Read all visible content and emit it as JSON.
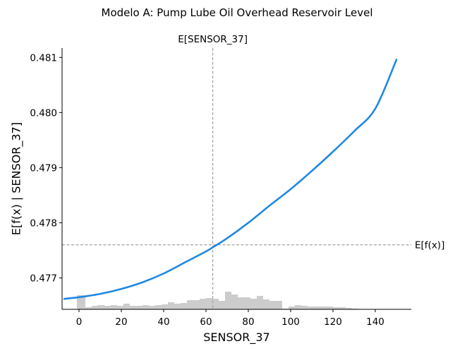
{
  "chart_data": {
    "type": "line",
    "title": "Modelo A: Pump Lube Oil Overhead Reservoir Level",
    "xlabel": "SENSOR_37",
    "ylabel": "E[f(x) | SENSOR_37]",
    "xlim": [
      -8,
      157
    ],
    "ylim": [
      0.47643,
      0.48117
    ],
    "xticks": [
      0,
      20,
      40,
      60,
      80,
      100,
      120,
      140
    ],
    "xtick_labels": [
      "0",
      "20",
      "40",
      "60",
      "80",
      "100",
      "120",
      "140"
    ],
    "yticks": [
      0.477,
      0.478,
      0.479,
      0.48,
      0.481
    ],
    "ytick_labels": [
      "0.477",
      "0.478",
      "0.479",
      "0.480",
      "0.481"
    ],
    "expected_x": {
      "label": "E[SENSOR_37]",
      "value": 63.2
    },
    "expected_y": {
      "label": "E[f(x)]",
      "value": 0.4776
    },
    "series": [
      {
        "color": "#1e88e5",
        "x": [
          -7,
          0,
          10,
          20,
          30,
          40,
          50,
          60,
          63,
          70,
          80,
          90,
          100,
          110,
          120,
          130,
          140,
          150
        ],
        "y": [
          0.47662,
          0.47665,
          0.47671,
          0.4768,
          0.47692,
          0.47708,
          0.47728,
          0.47748,
          0.47755,
          0.47772,
          0.478,
          0.47831,
          0.47861,
          0.47894,
          0.47929,
          0.47966,
          0.48007,
          0.48096
        ]
      }
    ],
    "histogram": {
      "color": "#cccccc",
      "bin_edges": [
        -1,
        3,
        6,
        9,
        12,
        15,
        18,
        21,
        24,
        27,
        30,
        33,
        36,
        39,
        42,
        45,
        48,
        51,
        54,
        57,
        60,
        63,
        66,
        69,
        72,
        75,
        78,
        81,
        84,
        87,
        90,
        93,
        96,
        99,
        102,
        105,
        108,
        111,
        114,
        117,
        120,
        123,
        126,
        129,
        132
      ],
      "heights": [
        0.2,
        0.03,
        0.05,
        0.06,
        0.05,
        0.06,
        0.05,
        0.08,
        0.05,
        0.05,
        0.06,
        0.05,
        0.06,
        0.07,
        0.1,
        0.08,
        0.09,
        0.13,
        0.13,
        0.15,
        0.16,
        0.15,
        0.12,
        0.25,
        0.21,
        0.17,
        0.17,
        0.15,
        0.19,
        0.14,
        0.12,
        0.12,
        0.01,
        0.04,
        0.06,
        0.05,
        0.04,
        0.04,
        0.04,
        0.04,
        0.03,
        0.03,
        0.02,
        0.01
      ]
    },
    "grid": false,
    "legend": false
  }
}
